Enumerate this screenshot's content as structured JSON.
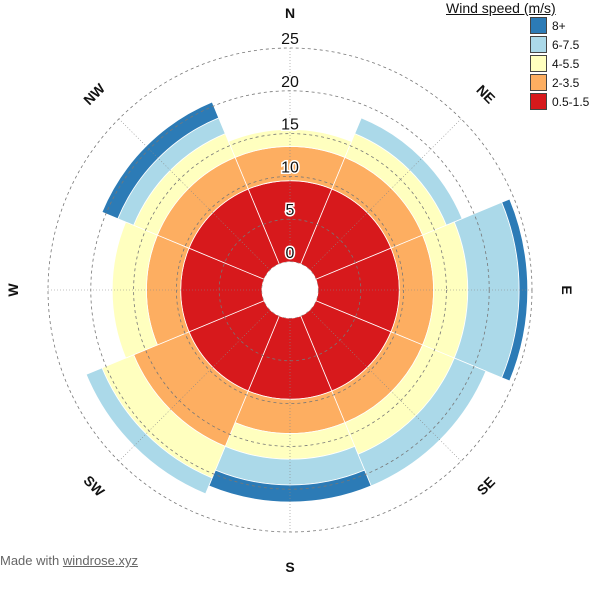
{
  "chart_data": {
    "type": "wind-rose",
    "title": "",
    "directions": [
      "N",
      "NE",
      "E",
      "SE",
      "S",
      "SW",
      "W",
      "NW"
    ],
    "radial_ticks": [
      0,
      5,
      10,
      15,
      20,
      25
    ],
    "rmax": 25,
    "legend": {
      "title": "Wind speed (m/s)",
      "placement": "top-right",
      "entries": [
        {
          "label": "8+",
          "color": "#2c7bb6"
        },
        {
          "label": "6-7.5",
          "color": "#abd9e9"
        },
        {
          "label": "4-5.5",
          "color": "#ffffbf"
        },
        {
          "label": "2-3.5",
          "color": "#fdae61"
        },
        {
          "label": "0.5-1.5",
          "color": "#d7191c"
        }
      ]
    },
    "series": [
      {
        "name": "0.5-1.5",
        "color": "#d7191c",
        "values": [
          9.5,
          9.5,
          9.5,
          9.5,
          9.5,
          9.5,
          9.5,
          9.5
        ]
      },
      {
        "name": "2-3.5",
        "color": "#fdae61",
        "values": [
          4,
          4,
          4,
          4,
          4,
          7,
          4,
          4
        ]
      },
      {
        "name": "4-5.5",
        "color": "#ffffbf",
        "values": [
          2,
          3,
          4,
          4,
          3,
          4,
          4,
          3
        ]
      },
      {
        "name": "6-7.5",
        "color": "#abd9e9",
        "values": [
          0,
          2,
          6,
          4,
          3,
          2,
          0,
          2
        ]
      },
      {
        "name": "8+",
        "color": "#2c7bb6",
        "values": [
          0,
          0,
          1,
          0,
          2,
          0,
          0,
          2
        ]
      }
    ],
    "grid": true
  },
  "credit": {
    "prefix": "Made with ",
    "link": "windrose.xyz"
  }
}
